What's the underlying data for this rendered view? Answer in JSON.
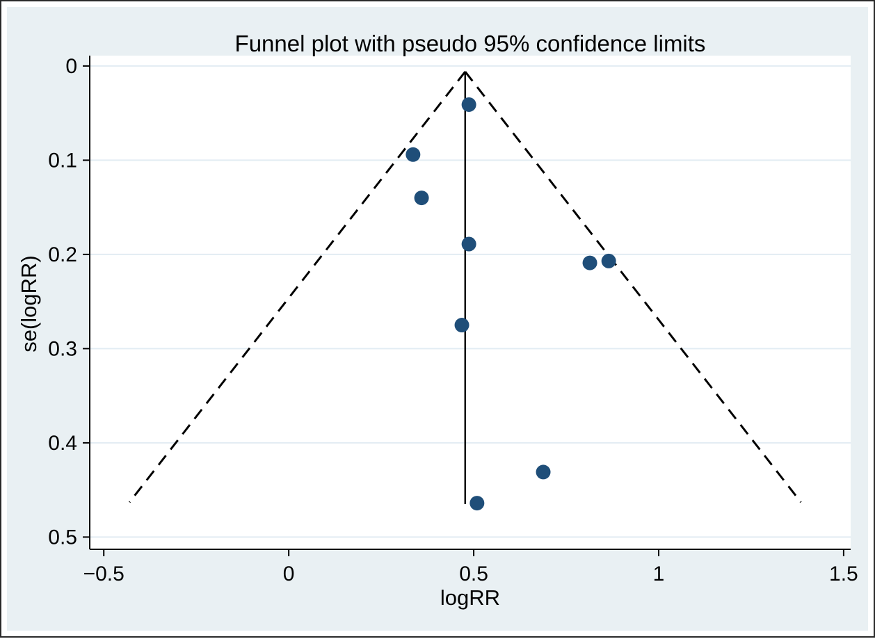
{
  "title": "Funnel plot with pseudo 95% confidence limits",
  "chart_data": {
    "type": "scatter",
    "title": "Funnel plot with pseudo 95% confidence limits",
    "xlabel": "logRR",
    "ylabel": "se(logRR)",
    "x_ticks": [
      {
        "value": -0.5,
        "label": "−0.5"
      },
      {
        "value": 0,
        "label": "0"
      },
      {
        "value": 0.5,
        "label": "0.5"
      },
      {
        "value": 1,
        "label": "1"
      },
      {
        "value": 1.5,
        "label": "1.5"
      }
    ],
    "y_ticks": [
      {
        "value": 0,
        "label": "0"
      },
      {
        "value": 0.1,
        "label": "0.1"
      },
      {
        "value": 0.2,
        "label": "0.2"
      },
      {
        "value": 0.3,
        "label": "0.3"
      },
      {
        "value": 0.4,
        "label": "0.4"
      },
      {
        "value": 0.5,
        "label": "0.5"
      }
    ],
    "xlim": [
      -0.538,
      1.519
    ],
    "ylim": [
      0.513,
      -0.011
    ],
    "y_axis_inverted": true,
    "grid": "horizontal-only",
    "legend": "none",
    "points": [
      {
        "logRR": 0.487,
        "se": 0.041
      },
      {
        "logRR": 0.336,
        "se": 0.094
      },
      {
        "logRR": 0.359,
        "se": 0.14
      },
      {
        "logRR": 0.487,
        "se": 0.189
      },
      {
        "logRR": 0.814,
        "se": 0.209
      },
      {
        "logRR": 0.865,
        "se": 0.207
      },
      {
        "logRR": 0.468,
        "se": 0.275
      },
      {
        "logRR": 0.688,
        "se": 0.431
      },
      {
        "logRR": 0.509,
        "se": 0.464
      }
    ],
    "pooled_logRR": 0.477,
    "z_value": 1.96,
    "funnel_apex_se": 0.006,
    "funnel_max_se": 0.463,
    "pooled_line_bottom_se": 0.465,
    "colors": {
      "marker": "#1f4e79",
      "canvas_background": "#e9f0f3",
      "plot_background": "#ffffff",
      "gridline": "#e2ecf3",
      "axis": "#000000",
      "funnel_line": "#000000",
      "pooled_line": "#000000"
    }
  }
}
